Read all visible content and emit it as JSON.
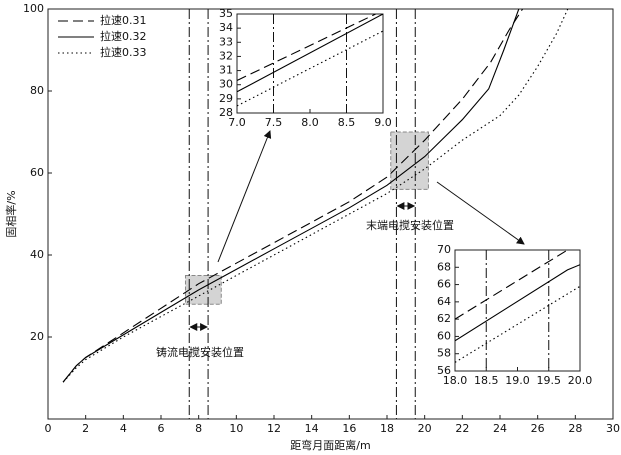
{
  "chart_data": [
    {
      "type": "line",
      "xlabel": "距弯月面距离/m",
      "ylabel": "固相率/%",
      "xlim": [
        0,
        30
      ],
      "ylim": [
        0,
        100
      ],
      "xticks": [
        0,
        2,
        4,
        6,
        8,
        10,
        12,
        14,
        16,
        18,
        20,
        22,
        24,
        26,
        28,
        30
      ],
      "yticks": [
        20,
        40,
        60,
        80,
        100
      ],
      "legend": "top-left",
      "series": [
        {
          "name": "拉速0.31",
          "color": "#000000",
          "dash": "dashed",
          "x": [
            0.8,
            1.5,
            2,
            4,
            6,
            8,
            10,
            12,
            14,
            16,
            18,
            20,
            22,
            23.5,
            24.5,
            25.2
          ],
          "values": [
            9,
            13,
            15,
            21,
            27,
            33,
            38,
            43,
            48,
            53,
            59,
            68,
            78,
            87,
            95,
            100
          ]
        },
        {
          "name": "拉速0.32",
          "color": "#000000",
          "dash": "solid",
          "x": [
            0.8,
            1.5,
            2,
            4,
            6,
            8,
            10,
            12,
            14,
            16,
            18,
            20,
            22,
            23.4,
            24.2,
            25
          ],
          "values": [
            9,
            13,
            15,
            20.5,
            26,
            31.5,
            36.5,
            41.5,
            46.5,
            51.5,
            57,
            64,
            73,
            80.5,
            90,
            100
          ]
        },
        {
          "name": "拉速0.33",
          "color": "#000000",
          "dash": "dotted",
          "x": [
            0.8,
            1.5,
            2,
            4,
            6,
            8,
            10,
            12,
            14,
            16,
            18,
            20,
            22,
            24,
            25,
            26,
            27,
            27.6
          ],
          "values": [
            9,
            12.5,
            14.5,
            20,
            25,
            30,
            35,
            40,
            45,
            50,
            55,
            61,
            68,
            74,
            79,
            86,
            94,
            100
          ]
        }
      ],
      "vlines": [
        7.5,
        8.5,
        18.5,
        19.5
      ],
      "highlights": [
        {
          "xlim": [
            7.3,
            9.2
          ],
          "ylim": [
            28,
            35
          ]
        },
        {
          "xlim": [
            18.2,
            20.2
          ],
          "ylim": [
            56,
            70
          ]
        }
      ],
      "annotations": [
        "铸流电搅安装位置",
        "末端电搅安装位置"
      ]
    },
    {
      "type": "line",
      "xlim": [
        7,
        9
      ],
      "ylim": [
        28,
        35
      ],
      "xticks": [
        {
          "value": 7,
          "label": "7.0"
        },
        {
          "value": 7.5,
          "label": "7.5"
        },
        {
          "value": 8,
          "label": "8.0"
        },
        {
          "value": 8.5,
          "label": "8.5"
        },
        {
          "value": 9,
          "label": "9.0"
        }
      ],
      "yticks": [
        28,
        29,
        30,
        31,
        32,
        33,
        34,
        35
      ],
      "series": [
        {
          "color": "#000000",
          "dash": "dashed",
          "x": [
            7,
            8.9
          ],
          "values": [
            30.3,
            35
          ]
        },
        {
          "color": "#000000",
          "dash": "solid",
          "x": [
            7,
            9
          ],
          "values": [
            29.5,
            35
          ]
        },
        {
          "color": "#000000",
          "dash": "dotted",
          "x": [
            7,
            9
          ],
          "values": [
            28.5,
            33.8
          ]
        }
      ],
      "vlines": [
        7.5,
        8.5
      ]
    },
    {
      "type": "line",
      "xlim": [
        18,
        20
      ],
      "ylim": [
        56,
        70
      ],
      "xticks": [
        {
          "value": 18,
          "label": "18.0"
        },
        {
          "value": 18.5,
          "label": "18.5"
        },
        {
          "value": 19,
          "label": "19.0"
        },
        {
          "value": 19.5,
          "label": "19.5"
        },
        {
          "value": 20,
          "label": "20.0"
        }
      ],
      "yticks": [
        56,
        58,
        60,
        62,
        64,
        66,
        68,
        70
      ],
      "series": [
        {
          "color": "#000000",
          "dash": "dashed",
          "x": [
            18,
            19.8
          ],
          "values": [
            62,
            70
          ]
        },
        {
          "color": "#000000",
          "dash": "solid",
          "x": [
            18,
            19.8,
            20
          ],
          "values": [
            59.5,
            67.7,
            68.3
          ]
        },
        {
          "color": "#000000",
          "dash": "dotted",
          "x": [
            18,
            20
          ],
          "values": [
            57,
            65.8
          ]
        }
      ],
      "vlines": [
        18.5,
        19.5
      ]
    }
  ]
}
